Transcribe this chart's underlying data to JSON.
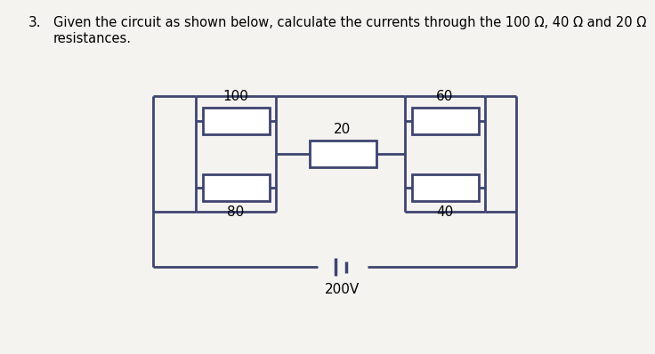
{
  "title_number": "3.",
  "title_text": "Given the circuit as shown below, calculate the currents through the 100 Ω, 40 Ω and 20 Ω",
  "title_text2": "resistances.",
  "bg_color": "#f5f3f0",
  "line_color": "#3d4470",
  "line_width": 2.0,
  "resistor_color": "#ffffff",
  "resistor_edge": "#3d4470",
  "labels": {
    "r100": "100",
    "r80": "80",
    "r20": "20",
    "r60": "60",
    "r40": "40",
    "battery": "200V"
  },
  "font_size_label": 11,
  "font_size_title": 10.5,
  "font_size_number": 11
}
